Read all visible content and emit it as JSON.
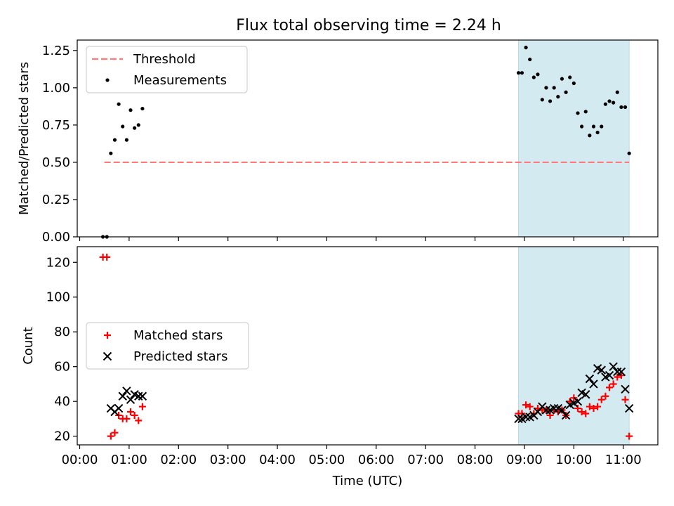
{
  "title": "Flux total observing time = 2.24 h",
  "chart_data": [
    {
      "type": "scatter",
      "ylabel": "Matched/Predicted stars",
      "ylim": [
        0.0,
        1.32
      ],
      "yticks": [
        0.0,
        0.25,
        0.5,
        0.75,
        1.0,
        1.25
      ],
      "ytick_labels": [
        "0.00",
        "0.25",
        "0.50",
        "0.75",
        "1.00",
        "1.25"
      ],
      "threshold": {
        "name": "Threshold",
        "value": 0.5,
        "x_start": 0.5,
        "x_end": 11.12,
        "color": "#ff7b7b"
      },
      "shaded_span": {
        "x_start": 8.88,
        "x_end": 11.12,
        "color": "#d3eaf1"
      },
      "legend": [
        {
          "label": "Threshold",
          "marker": "dashed-line"
        },
        {
          "label": "Measurements",
          "marker": "dot"
        }
      ],
      "series": [
        {
          "name": "Measurements",
          "x": [
            0.47,
            0.55,
            0.63,
            0.71,
            0.79,
            0.87,
            0.95,
            1.03,
            1.11,
            1.19,
            1.27,
            8.88,
            8.95,
            9.03,
            9.11,
            9.19,
            9.27,
            9.36,
            9.44,
            9.52,
            9.6,
            9.68,
            9.76,
            9.84,
            9.92,
            10.0,
            10.08,
            10.16,
            10.24,
            10.32,
            10.4,
            10.48,
            10.56,
            10.64,
            10.72,
            10.8,
            10.88,
            10.96,
            11.04,
            11.12
          ],
          "y": [
            0.0,
            0.0,
            0.56,
            0.65,
            0.89,
            0.74,
            0.65,
            0.85,
            0.73,
            0.75,
            0.86,
            1.1,
            1.1,
            1.27,
            1.19,
            1.07,
            1.09,
            0.92,
            1.0,
            0.91,
            1.0,
            0.94,
            1.06,
            0.97,
            1.07,
            1.03,
            0.83,
            0.74,
            0.84,
            0.68,
            0.74,
            0.7,
            0.74,
            0.89,
            0.91,
            0.9,
            0.97,
            0.87,
            0.87,
            0.56
          ],
          "color": "#000000"
        }
      ]
    },
    {
      "type": "scatter",
      "xlabel": "Time (UTC)",
      "ylabel": "Count",
      "ylim": [
        15,
        129
      ],
      "xlim": [
        -0.05,
        11.7
      ],
      "yticks": [
        20,
        40,
        60,
        80,
        100,
        120
      ],
      "ytick_labels": [
        "20",
        "40",
        "60",
        "80",
        "100",
        "120"
      ],
      "xticks": [
        0,
        1,
        2,
        3,
        4,
        5,
        6,
        7,
        8,
        9,
        10,
        11
      ],
      "xtick_labels": [
        "00:00",
        "01:00",
        "02:00",
        "03:00",
        "04:00",
        "05:00",
        "06:00",
        "07:00",
        "08:00",
        "09:00",
        "10:00",
        "11:00"
      ],
      "shaded_span": {
        "x_start": 8.88,
        "x_end": 11.12,
        "color": "#d3eaf1"
      },
      "legend": [
        {
          "label": "Matched stars",
          "marker": "plus",
          "color": "#ff0000"
        },
        {
          "label": "Predicted stars",
          "marker": "x",
          "color": "#000000"
        }
      ],
      "series": [
        {
          "name": "Matched stars",
          "marker": "plus",
          "color": "#ff0000",
          "x": [
            0.47,
            0.55,
            0.63,
            0.71,
            0.79,
            0.87,
            0.95,
            1.03,
            1.11,
            1.19,
            1.27,
            8.88,
            8.95,
            9.03,
            9.11,
            9.19,
            9.27,
            9.36,
            9.44,
            9.52,
            9.6,
            9.68,
            9.76,
            9.84,
            9.92,
            10.0,
            10.08,
            10.16,
            10.24,
            10.32,
            10.4,
            10.48,
            10.56,
            10.64,
            10.72,
            10.8,
            10.88,
            10.96,
            11.04,
            11.12
          ],
          "y": [
            123,
            123,
            20,
            22,
            32,
            30,
            30,
            34,
            32,
            29,
            37,
            33,
            33,
            38,
            37,
            33,
            36,
            35,
            35,
            32,
            35,
            34,
            35,
            32,
            40,
            42,
            36,
            34,
            33,
            37,
            36,
            37,
            41,
            43,
            48,
            50,
            54,
            55,
            41,
            20
          ]
        },
        {
          "name": "Predicted stars",
          "marker": "x",
          "color": "#000000",
          "x": [
            0.63,
            0.71,
            0.79,
            0.87,
            0.95,
            1.03,
            1.11,
            1.19,
            1.27,
            8.88,
            8.95,
            9.03,
            9.11,
            9.19,
            9.27,
            9.36,
            9.44,
            9.52,
            9.6,
            9.68,
            9.76,
            9.84,
            9.92,
            10.0,
            10.08,
            10.16,
            10.24,
            10.32,
            10.4,
            10.48,
            10.56,
            10.64,
            10.72,
            10.8,
            10.88,
            10.96,
            11.04,
            11.12
          ],
          "y": [
            36,
            34,
            36,
            43,
            46,
            41,
            44,
            43,
            43,
            30,
            30,
            31,
            31,
            32,
            34,
            37,
            35,
            35,
            36,
            36,
            35,
            32,
            38,
            39,
            40,
            45,
            44,
            53,
            50,
            59,
            58,
            54,
            55,
            60,
            57,
            57,
            47,
            36
          ]
        }
      ]
    }
  ]
}
